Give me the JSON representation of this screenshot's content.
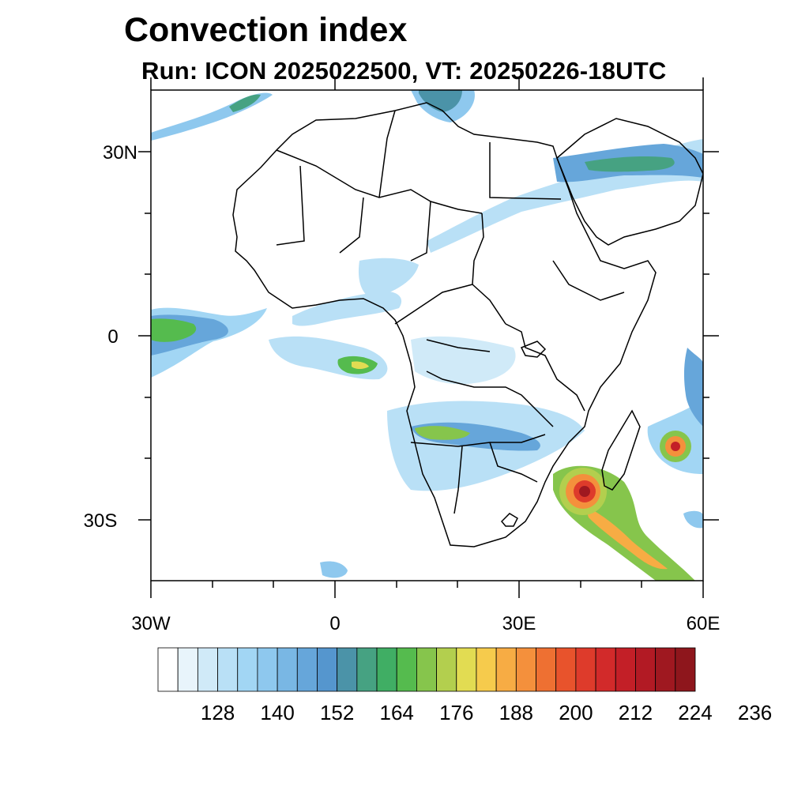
{
  "title": "Convection index",
  "subtitle": "Run: ICON 2025022500,  VT: 20250226-18UTC",
  "map": {
    "lon_range": [
      -30,
      60
    ],
    "lat_range": [
      -40,
      40
    ],
    "lat_labels": [
      "30N",
      "0",
      "30S"
    ],
    "lon_labels": [
      "30W",
      "0",
      "30E",
      "60E"
    ]
  },
  "colorbar": {
    "colors": [
      "#ffffff",
      "#e8f4fb",
      "#d0eaf8",
      "#b9e0f6",
      "#a2d6f4",
      "#8ec8ee",
      "#79b7e4",
      "#66a6da",
      "#5596ce",
      "#4b93a8",
      "#46a282",
      "#40ae64",
      "#55bb4e",
      "#86c54c",
      "#b3cf4e",
      "#e2dc52",
      "#f6cb4c",
      "#f7ac44",
      "#f4903c",
      "#ee7032",
      "#e8532c",
      "#de3b2b",
      "#d22a2a",
      "#c31f27",
      "#b21a24",
      "#9f1820",
      "#8e161c"
    ],
    "labels": [
      "128",
      "140",
      "152",
      "164",
      "176",
      "188",
      "200",
      "212",
      "224",
      "236"
    ]
  }
}
